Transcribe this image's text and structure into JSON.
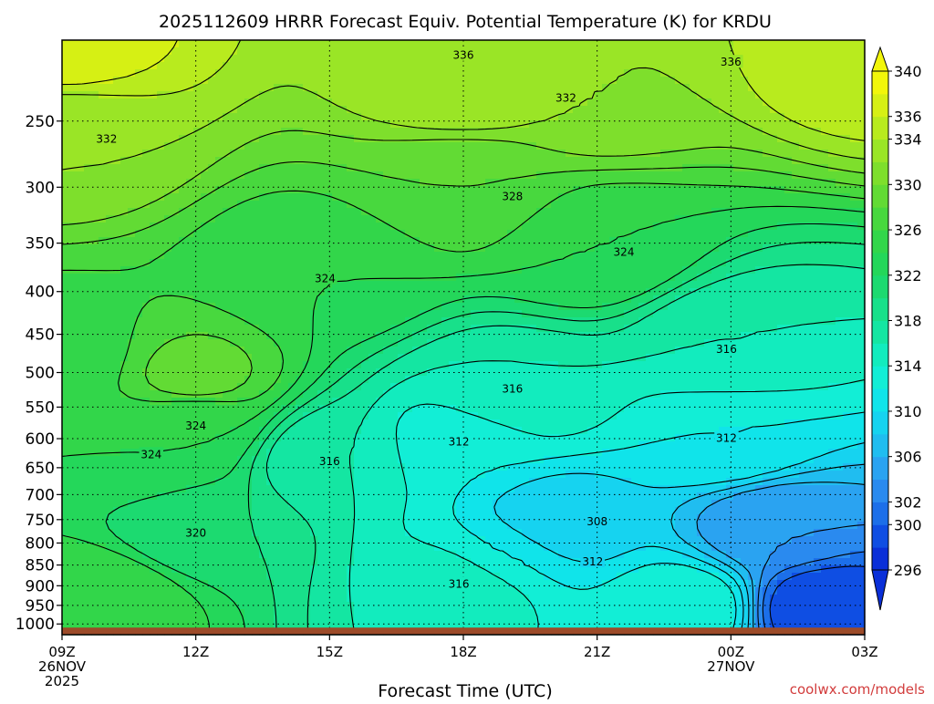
{
  "chart_data": {
    "type": "heatmap",
    "title": "2025112609 HRRR Forecast Equiv. Potential Temperature (K) for KRDU",
    "xlabel": "Forecast Time (UTC)",
    "ylabel": "",
    "credit": "coolwx.com/models",
    "x_ticks": [
      {
        "hour": 0,
        "label": "09Z",
        "sub1": "26NOV",
        "sub2": "2025"
      },
      {
        "hour": 3,
        "label": "12Z",
        "sub1": "",
        "sub2": ""
      },
      {
        "hour": 6,
        "label": "15Z",
        "sub1": "",
        "sub2": ""
      },
      {
        "hour": 9,
        "label": "18Z",
        "sub1": "",
        "sub2": ""
      },
      {
        "hour": 12,
        "label": "21Z",
        "sub1": "",
        "sub2": ""
      },
      {
        "hour": 15,
        "label": "00Z",
        "sub1": "27NOV",
        "sub2": ""
      },
      {
        "hour": 18,
        "label": "03Z",
        "sub1": "",
        "sub2": ""
      }
    ],
    "y_ticks": [
      "250",
      "300",
      "350",
      "400",
      "450",
      "500",
      "550",
      "600",
      "650",
      "700",
      "750",
      "800",
      "850",
      "900",
      "950",
      "1000"
    ],
    "y_axis": {
      "scale": "log",
      "top_hPa": 200,
      "bottom_hPa": 1030,
      "surface_hPa": 1010
    },
    "colorbar": {
      "levels": [
        296,
        298,
        300,
        302,
        304,
        306,
        308,
        310,
        312,
        314,
        316,
        318,
        320,
        322,
        324,
        326,
        328,
        330,
        332,
        334,
        336,
        338,
        340
      ],
      "labels": [
        "340",
        "336",
        "334",
        "330",
        "326",
        "322",
        "318",
        "314",
        "310",
        "306",
        "302",
        "300",
        "296"
      ],
      "colors": [
        "#0a2fd8",
        "#0f4ee3",
        "#1c6fe9",
        "#2a8aef",
        "#2aa3f1",
        "#20bdf0",
        "#16d3f0",
        "#10e4ea",
        "#12eed6",
        "#12ecbe",
        "#14e6a2",
        "#18e08a",
        "#1cda70",
        "#24d75a",
        "#32d64a",
        "#48d83e",
        "#62db34",
        "#7edf2c",
        "#9ae526",
        "#b8eb1e",
        "#d6f014",
        "#f2f60a"
      ]
    },
    "theta_e_points": [
      {
        "hour": 0,
        "hPa": 205,
        "value": 337
      },
      {
        "hour": 18,
        "hPa": 205,
        "value": 336
      },
      {
        "hour": 9,
        "hPa": 225,
        "value": 334
      },
      {
        "hour": 0,
        "hPa": 260,
        "value": 332
      },
      {
        "hour": 12,
        "hPa": 230,
        "value": 332
      },
      {
        "hour": 9,
        "hPa": 300,
        "value": 328
      },
      {
        "hour": 12,
        "hPa": 355,
        "value": 324
      },
      {
        "hour": 6,
        "hPa": 380,
        "value": 324
      },
      {
        "hour": 0,
        "hPa": 480,
        "value": 325
      },
      {
        "hour": 3,
        "hPa": 570,
        "value": 324
      },
      {
        "hour": 2,
        "hPa": 625,
        "value": 324
      },
      {
        "hour": 3,
        "hPa": 510,
        "value": 329
      },
      {
        "hour": 15,
        "hPa": 460,
        "value": 316
      },
      {
        "hour": 10,
        "hPa": 530,
        "value": 316
      },
      {
        "hour": 6,
        "hPa": 630,
        "value": 316
      },
      {
        "hour": 9,
        "hPa": 610,
        "value": 312
      },
      {
        "hour": 15,
        "hPa": 605,
        "value": 312
      },
      {
        "hour": 11,
        "hPa": 760,
        "value": 308
      },
      {
        "hour": 16,
        "hPa": 760,
        "value": 304
      },
      {
        "hour": 10,
        "hPa": 825,
        "value": 312
      },
      {
        "hour": 9,
        "hPa": 900,
        "value": 316
      },
      {
        "hour": 3,
        "hPa": 770,
        "value": 320
      },
      {
        "hour": 1,
        "hPa": 930,
        "value": 326
      },
      {
        "hour": 17,
        "hPa": 960,
        "value": 298
      },
      {
        "hour": 14,
        "hPa": 960,
        "value": 314
      }
    ],
    "contour_labels": [
      {
        "text": "336",
        "hour": 9.0,
        "hPa": 208
      },
      {
        "text": "336",
        "hour": 15.0,
        "hPa": 212
      },
      {
        "text": "332",
        "hour": 11.3,
        "hPa": 234
      },
      {
        "text": "332",
        "hour": 1.0,
        "hPa": 262
      },
      {
        "text": "328",
        "hour": 10.1,
        "hPa": 307
      },
      {
        "text": "324",
        "hour": 12.6,
        "hPa": 358
      },
      {
        "text": "324",
        "hour": 5.9,
        "hPa": 385
      },
      {
        "text": "316",
        "hour": 14.9,
        "hPa": 468
      },
      {
        "text": "316",
        "hour": 10.1,
        "hPa": 522
      },
      {
        "text": "324",
        "hour": 3.0,
        "hPa": 578
      },
      {
        "text": "312",
        "hour": 8.9,
        "hPa": 604
      },
      {
        "text": "312",
        "hour": 14.9,
        "hPa": 598
      },
      {
        "text": "324",
        "hour": 2.0,
        "hPa": 625
      },
      {
        "text": "316",
        "hour": 6.0,
        "hPa": 637
      },
      {
        "text": "308",
        "hour": 12.0,
        "hPa": 752
      },
      {
        "text": "320",
        "hour": 3.0,
        "hPa": 776
      },
      {
        "text": "312",
        "hour": 11.9,
        "hPa": 840
      },
      {
        "text": "316",
        "hour": 8.9,
        "hPa": 894
      }
    ]
  }
}
